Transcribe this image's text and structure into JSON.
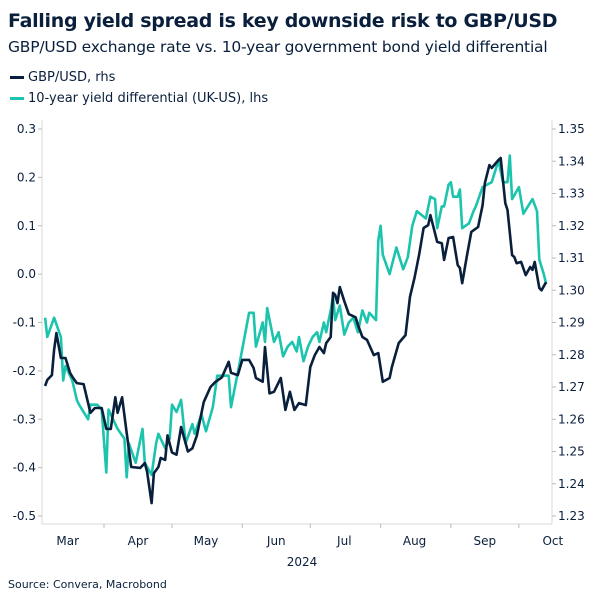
{
  "header": {
    "title": "Falling yield spread is key downside risk to GBP/USD",
    "subtitle": "GBP/USD exchange rate vs. 10-year government bond yield differential"
  },
  "source": "Source: Convera, Macrobond",
  "colors": {
    "gbpusd": "#0a1f3c",
    "yield": "#1cc4ad",
    "axis": "#d9d9d9"
  },
  "chart_data": {
    "type": "line",
    "title": "Falling yield spread is key downside risk to GBP/USD",
    "subtitle": "GBP/USD exchange rate vs. 10-year government bond yield differential",
    "legend_position": "top-left",
    "grid": false,
    "x_ticks": [
      "Mar",
      "Apr",
      "May",
      "Jun",
      "Jul",
      "Aug",
      "Sep",
      "Oct"
    ],
    "x_year": "2024",
    "y_left": {
      "ticks": [
        "0.3",
        "0.2",
        "0.1",
        "0.0",
        "-0.1",
        "-0.2",
        "-0.3",
        "-0.4",
        "-0.5"
      ],
      "range": [
        -0.5,
        0.3
      ]
    },
    "y_right": {
      "ticks": [
        "1.35",
        "1.34",
        "1.33",
        "1.32",
        "1.31",
        "1.30",
        "1.29",
        "1.28",
        "1.27",
        "1.26",
        "1.25",
        "1.24",
        "1.23"
      ],
      "range": [
        1.23,
        1.35
      ]
    },
    "series": [
      {
        "name": "GBP/USD, rhs",
        "axis": "right",
        "color": "#0a1f3c",
        "points": [
          [
            "2024-03-06",
            1.2703
          ],
          [
            "2024-03-07",
            1.2722
          ],
          [
            "2024-03-09",
            1.2737
          ],
          [
            "2024-03-10",
            1.2815
          ],
          [
            "2024-03-11",
            1.2867
          ],
          [
            "2024-03-13",
            1.279
          ],
          [
            "2024-03-15",
            1.279
          ],
          [
            "2024-03-17",
            1.2744
          ],
          [
            "2024-03-18",
            1.2732
          ],
          [
            "2024-03-20",
            1.2712
          ],
          [
            "2024-03-23",
            1.2709
          ],
          [
            "2024-03-25",
            1.265
          ],
          [
            "2024-03-26",
            1.262
          ],
          [
            "2024-03-28",
            1.2635
          ],
          [
            "2024-03-31",
            1.2635
          ],
          [
            "2024-04-02",
            1.257
          ],
          [
            "2024-04-04",
            1.257
          ],
          [
            "2024-04-06",
            1.2668
          ],
          [
            "2024-04-07",
            1.262
          ],
          [
            "2024-04-09",
            1.2668
          ],
          [
            "2024-04-11",
            1.2557
          ],
          [
            "2024-04-13",
            1.2452
          ],
          [
            "2024-04-17",
            1.2449
          ],
          [
            "2024-04-19",
            1.2464
          ],
          [
            "2024-04-20",
            1.2437
          ],
          [
            "2024-04-22",
            1.234
          ],
          [
            "2024-04-23",
            1.2433
          ],
          [
            "2024-04-25",
            1.2452
          ],
          [
            "2024-04-26",
            1.248
          ],
          [
            "2024-04-28",
            1.2474
          ],
          [
            "2024-04-29",
            1.255
          ],
          [
            "2024-05-01",
            1.2497
          ],
          [
            "2024-05-03",
            1.249
          ],
          [
            "2024-05-05",
            1.2576
          ],
          [
            "2024-05-08",
            1.25
          ],
          [
            "2024-05-10",
            1.251
          ],
          [
            "2024-05-12",
            1.255
          ],
          [
            "2024-05-15",
            1.2653
          ],
          [
            "2024-05-18",
            1.27
          ],
          [
            "2024-05-20",
            1.2715
          ],
          [
            "2024-05-23",
            1.273
          ],
          [
            "2024-05-26",
            1.2778
          ],
          [
            "2024-05-27",
            1.2744
          ],
          [
            "2024-05-30",
            1.2737
          ],
          [
            "2024-06-01",
            1.2784
          ],
          [
            "2024-06-04",
            1.2784
          ],
          [
            "2024-06-06",
            1.2759
          ],
          [
            "2024-06-07",
            1.2728
          ],
          [
            "2024-06-10",
            1.2716
          ],
          [
            "2024-06-11",
            1.2824
          ],
          [
            "2024-06-13",
            1.268
          ],
          [
            "2024-06-15",
            1.2685
          ],
          [
            "2024-06-18",
            1.2728
          ],
          [
            "2024-06-20",
            1.2629
          ],
          [
            "2024-06-22",
            1.2685
          ],
          [
            "2024-06-24",
            1.2629
          ],
          [
            "2024-06-26",
            1.265
          ],
          [
            "2024-06-29",
            1.2644
          ],
          [
            "2024-07-01",
            1.2762
          ],
          [
            "2024-07-03",
            1.2799
          ],
          [
            "2024-07-05",
            1.2824
          ],
          [
            "2024-07-07",
            1.2805
          ],
          [
            "2024-07-08",
            1.2836
          ],
          [
            "2024-07-10",
            1.2855
          ],
          [
            "2024-07-11",
            1.2992
          ],
          [
            "2024-07-12",
            1.2986
          ],
          [
            "2024-07-13",
            1.296
          ],
          [
            "2024-07-14",
            1.301
          ],
          [
            "2024-07-16",
            1.2966
          ],
          [
            "2024-07-18",
            1.2926
          ],
          [
            "2024-07-21",
            1.2916
          ],
          [
            "2024-07-22",
            1.2893
          ],
          [
            "2024-07-24",
            1.2855
          ],
          [
            "2024-07-26",
            1.2846
          ],
          [
            "2024-07-29",
            1.2799
          ],
          [
            "2024-07-31",
            1.2805
          ],
          [
            "2024-08-02",
            1.2716
          ],
          [
            "2024-08-05",
            1.2728
          ],
          [
            "2024-08-06",
            1.2762
          ],
          [
            "2024-08-09",
            1.2836
          ],
          [
            "2024-08-12",
            1.2861
          ],
          [
            "2024-08-14",
            1.298
          ],
          [
            "2024-08-16",
            1.304
          ],
          [
            "2024-08-18",
            1.311
          ],
          [
            "2024-08-20",
            1.3193
          ],
          [
            "2024-08-22",
            1.3202
          ],
          [
            "2024-08-23",
            1.3233
          ],
          [
            "2024-08-26",
            1.315
          ],
          [
            "2024-08-28",
            1.3146
          ],
          [
            "2024-08-29",
            1.3094
          ],
          [
            "2024-08-31",
            1.3162
          ],
          [
            "2024-09-02",
            1.3165
          ],
          [
            "2024-09-04",
            1.3078
          ],
          [
            "2024-09-05",
            1.3069
          ],
          [
            "2024-09-06",
            1.3022
          ],
          [
            "2024-09-08",
            1.3103
          ],
          [
            "2024-09-10",
            1.3181
          ],
          [
            "2024-09-13",
            1.3196
          ],
          [
            "2024-09-15",
            1.3264
          ],
          [
            "2024-09-16",
            1.3333
          ],
          [
            "2024-09-18",
            1.3388
          ],
          [
            "2024-09-19",
            1.3379
          ],
          [
            "2024-09-22",
            1.3404
          ],
          [
            "2024-09-23",
            1.341
          ],
          [
            "2024-09-25",
            1.327
          ],
          [
            "2024-09-26",
            1.3249
          ],
          [
            "2024-09-28",
            1.3109
          ],
          [
            "2024-09-29",
            1.3103
          ],
          [
            "2024-09-30",
            1.3084
          ],
          [
            "2024-10-02",
            1.3088
          ],
          [
            "2024-10-04",
            1.3047
          ],
          [
            "2024-10-06",
            1.3072
          ],
          [
            "2024-10-07",
            1.3063
          ],
          [
            "2024-10-08",
            1.3088
          ],
          [
            "2024-10-10",
            1.3007
          ],
          [
            "2024-10-11",
            1.3
          ],
          [
            "2024-10-13",
            1.3025
          ]
        ]
      },
      {
        "name": "10-year yield differential (UK-US), lhs",
        "axis": "left",
        "color": "#1cc4ad",
        "points": [
          [
            "2024-03-06",
            -0.09
          ],
          [
            "2024-03-07",
            -0.13
          ],
          [
            "2024-03-10",
            -0.09
          ],
          [
            "2024-03-13",
            -0.13
          ],
          [
            "2024-03-14",
            -0.22
          ],
          [
            "2024-03-15",
            -0.19
          ],
          [
            "2024-03-18",
            -0.22
          ],
          [
            "2024-03-20",
            -0.26
          ],
          [
            "2024-03-21",
            -0.27
          ],
          [
            "2024-03-25",
            -0.3
          ],
          [
            "2024-03-26",
            -0.27
          ],
          [
            "2024-03-29",
            -0.27
          ],
          [
            "2024-03-31",
            -0.28
          ],
          [
            "2024-04-02",
            -0.41
          ],
          [
            "2024-04-03",
            -0.28
          ],
          [
            "2024-04-07",
            -0.32
          ],
          [
            "2024-04-10",
            -0.34
          ],
          [
            "2024-04-11",
            -0.42
          ],
          [
            "2024-04-12",
            -0.35
          ],
          [
            "2024-04-15",
            -0.39
          ],
          [
            "2024-04-18",
            -0.32
          ],
          [
            "2024-04-19",
            -0.39
          ],
          [
            "2024-04-22",
            -0.415
          ],
          [
            "2024-04-24",
            -0.35
          ],
          [
            "2024-04-25",
            -0.33
          ],
          [
            "2024-04-28",
            -0.36
          ],
          [
            "2024-04-30",
            -0.34
          ],
          [
            "2024-05-01",
            -0.27
          ],
          [
            "2024-05-03",
            -0.285
          ],
          [
            "2024-05-05",
            -0.26
          ],
          [
            "2024-05-07",
            -0.35
          ],
          [
            "2024-05-10",
            -0.31
          ],
          [
            "2024-05-11",
            -0.33
          ],
          [
            "2024-05-14",
            -0.29
          ],
          [
            "2024-05-16",
            -0.325
          ],
          [
            "2024-05-19",
            -0.275
          ],
          [
            "2024-05-21",
            -0.21
          ],
          [
            "2024-05-26",
            -0.21
          ],
          [
            "2024-05-27",
            -0.275
          ],
          [
            "2024-05-31",
            -0.18
          ],
          [
            "2024-06-04",
            -0.08
          ],
          [
            "2024-06-06",
            -0.08
          ],
          [
            "2024-06-07",
            -0.15
          ],
          [
            "2024-06-10",
            -0.1
          ],
          [
            "2024-06-11",
            -0.14
          ],
          [
            "2024-06-12",
            -0.07
          ],
          [
            "2024-06-15",
            -0.14
          ],
          [
            "2024-06-17",
            -0.12
          ],
          [
            "2024-06-19",
            -0.17
          ],
          [
            "2024-06-21",
            -0.15
          ],
          [
            "2024-06-23",
            -0.14
          ],
          [
            "2024-06-25",
            -0.16
          ],
          [
            "2024-06-26",
            -0.13
          ],
          [
            "2024-06-28",
            -0.18
          ],
          [
            "2024-06-30",
            -0.15
          ],
          [
            "2024-07-02",
            -0.13
          ],
          [
            "2024-07-04",
            -0.12
          ],
          [
            "2024-07-05",
            -0.14
          ],
          [
            "2024-07-07",
            -0.1
          ],
          [
            "2024-07-08",
            -0.12
          ],
          [
            "2024-07-10",
            -0.075
          ],
          [
            "2024-07-11",
            -0.045
          ],
          [
            "2024-07-12",
            -0.095
          ],
          [
            "2024-07-14",
            -0.065
          ],
          [
            "2024-07-16",
            -0.125
          ],
          [
            "2024-07-18",
            -0.1
          ],
          [
            "2024-07-20",
            -0.09
          ],
          [
            "2024-07-22",
            -0.12
          ],
          [
            "2024-07-24",
            -0.075
          ],
          [
            "2024-07-26",
            -0.1
          ],
          [
            "2024-07-27",
            -0.08
          ],
          [
            "2024-07-30",
            -0.095
          ],
          [
            "2024-07-31",
            0.07
          ],
          [
            "2024-08-01",
            0.1
          ],
          [
            "2024-08-02",
            0.04
          ],
          [
            "2024-08-05",
            0.0
          ],
          [
            "2024-08-08",
            0.055
          ],
          [
            "2024-08-11",
            0.01
          ],
          [
            "2024-08-13",
            0.035
          ],
          [
            "2024-08-15",
            0.1
          ],
          [
            "2024-08-17",
            0.13
          ],
          [
            "2024-08-21",
            0.115
          ],
          [
            "2024-08-23",
            0.16
          ],
          [
            "2024-08-25",
            0.155
          ],
          [
            "2024-08-26",
            0.095
          ],
          [
            "2024-08-28",
            0.14
          ],
          [
            "2024-08-29",
            0.14
          ],
          [
            "2024-08-31",
            0.185
          ],
          [
            "2024-09-01",
            0.19
          ],
          [
            "2024-09-02",
            0.16
          ],
          [
            "2024-09-04",
            0.16
          ],
          [
            "2024-09-05",
            0.175
          ],
          [
            "2024-09-06",
            0.095
          ],
          [
            "2024-09-09",
            0.105
          ],
          [
            "2024-09-11",
            0.13
          ],
          [
            "2024-09-12",
            0.14
          ],
          [
            "2024-09-15",
            0.18
          ],
          [
            "2024-09-17",
            0.185
          ],
          [
            "2024-09-19",
            0.19
          ],
          [
            "2024-09-22",
            0.235
          ],
          [
            "2024-09-24",
            0.19
          ],
          [
            "2024-09-26",
            0.19
          ],
          [
            "2024-09-27",
            0.245
          ],
          [
            "2024-09-28",
            0.155
          ],
          [
            "2024-10-01",
            0.18
          ],
          [
            "2024-10-03",
            0.125
          ],
          [
            "2024-10-05",
            0.14
          ],
          [
            "2024-10-07",
            0.155
          ],
          [
            "2024-10-09",
            0.13
          ],
          [
            "2024-10-10",
            0.03
          ],
          [
            "2024-10-12",
            0.0
          ],
          [
            "2024-10-13",
            -0.02
          ]
        ]
      }
    ]
  }
}
